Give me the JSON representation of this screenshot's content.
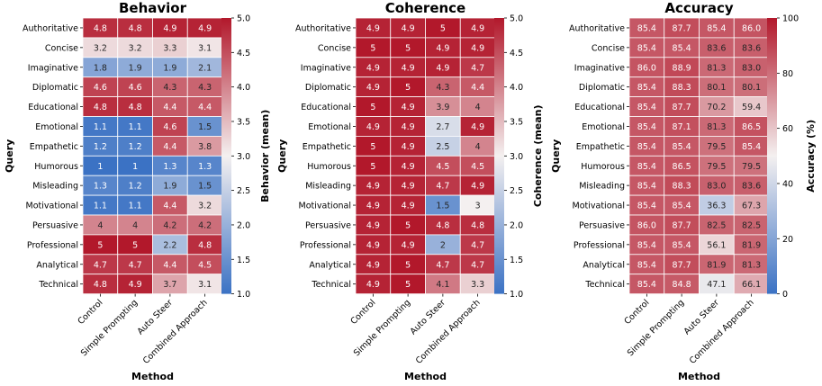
{
  "chart_data": [
    {
      "type": "heatmap",
      "title": "Behavior",
      "xlabel": "Method",
      "ylabel": "Query",
      "colorbar_label": "Behavior (mean)",
      "colorbar_range": [
        1.0,
        5.0
      ],
      "colorbar_ticks": [
        "1.0",
        "1.5",
        "2.0",
        "2.5",
        "3.0",
        "3.5",
        "4.0",
        "4.5",
        "5.0"
      ],
      "columns": [
        "Control",
        "Simple Prompting",
        "Auto Steer",
        "Combined Approach"
      ],
      "rows": [
        "Authoritative",
        "Concise",
        "Imaginative",
        "Diplomatic",
        "Educational",
        "Emotional",
        "Empathetic",
        "Humorous",
        "Misleading",
        "Motivational",
        "Persuasive",
        "Professional",
        "Analytical",
        "Technical"
      ],
      "labels": [
        [
          "4.8",
          "4.8",
          "4.9",
          "4.9"
        ],
        [
          "3.2",
          "3.2",
          "3.3",
          "3.1"
        ],
        [
          "1.8",
          "1.9",
          "1.9",
          "2.1"
        ],
        [
          "4.6",
          "4.6",
          "4.3",
          "4.3"
        ],
        [
          "4.8",
          "4.8",
          "4.4",
          "4.4"
        ],
        [
          "1.1",
          "1.1",
          "4.6",
          "1.5"
        ],
        [
          "1.2",
          "1.2",
          "4.4",
          "3.8"
        ],
        [
          "1",
          "1",
          "1.3",
          "1.3"
        ],
        [
          "1.3",
          "1.2",
          "1.9",
          "1.5"
        ],
        [
          "1.1",
          "1.1",
          "4.4",
          "3.2"
        ],
        [
          "4",
          "4",
          "4.2",
          "4.2"
        ],
        [
          "5",
          "5",
          "2.2",
          "4.8"
        ],
        [
          "4.7",
          "4.7",
          "4.4",
          "4.5"
        ],
        [
          "4.8",
          "4.9",
          "3.7",
          "3.1"
        ]
      ],
      "values": [
        [
          4.8,
          4.8,
          4.9,
          4.9
        ],
        [
          3.2,
          3.2,
          3.3,
          3.1
        ],
        [
          1.8,
          1.9,
          1.9,
          2.1
        ],
        [
          4.6,
          4.6,
          4.3,
          4.3
        ],
        [
          4.8,
          4.8,
          4.4,
          4.4
        ],
        [
          1.1,
          1.1,
          4.6,
          1.5
        ],
        [
          1.2,
          1.2,
          4.4,
          3.8
        ],
        [
          1,
          1,
          1.3,
          1.3
        ],
        [
          1.3,
          1.2,
          1.9,
          1.5
        ],
        [
          1.1,
          1.1,
          4.4,
          3.2
        ],
        [
          4,
          4,
          4.2,
          4.2
        ],
        [
          5,
          5,
          2.2,
          4.8
        ],
        [
          4.7,
          4.7,
          4.4,
          4.5
        ],
        [
          4.8,
          4.9,
          3.7,
          3.1
        ]
      ]
    },
    {
      "type": "heatmap",
      "title": "Coherence",
      "xlabel": "Method",
      "ylabel": "Query",
      "colorbar_label": "Coherence (mean)",
      "colorbar_range": [
        1.0,
        5.0
      ],
      "colorbar_ticks": [
        "1.0",
        "1.5",
        "2.0",
        "2.5",
        "3.0",
        "3.5",
        "4.0",
        "4.5",
        "5.0"
      ],
      "columns": [
        "Control",
        "Simple Prompting",
        "Auto Steer",
        "Combined Approach"
      ],
      "rows": [
        "Authoritative",
        "Concise",
        "Imaginative",
        "Diplomatic",
        "Educational",
        "Emotional",
        "Empathetic",
        "Humorous",
        "Misleading",
        "Motivational",
        "Persuasive",
        "Professional",
        "Analytical",
        "Technical"
      ],
      "labels": [
        [
          "4.9",
          "4.9",
          "5",
          "4.9"
        ],
        [
          "5",
          "5",
          "4.9",
          "4.9"
        ],
        [
          "4.9",
          "4.9",
          "4.9",
          "4.7"
        ],
        [
          "4.9",
          "5",
          "4.3",
          "4.4"
        ],
        [
          "5",
          "4.9",
          "3.9",
          "4"
        ],
        [
          "4.9",
          "4.9",
          "2.7",
          "4.9"
        ],
        [
          "5",
          "4.9",
          "2.5",
          "4"
        ],
        [
          "5",
          "4.9",
          "4.5",
          "4.5"
        ],
        [
          "4.9",
          "4.9",
          "4.7",
          "4.9"
        ],
        [
          "4.9",
          "4.9",
          "1.5",
          "3"
        ],
        [
          "4.9",
          "5",
          "4.8",
          "4.8"
        ],
        [
          "4.9",
          "4.9",
          "2",
          "4.7"
        ],
        [
          "4.9",
          "5",
          "4.7",
          "4.7"
        ],
        [
          "4.9",
          "5",
          "4.1",
          "3.3"
        ]
      ],
      "values": [
        [
          4.9,
          4.9,
          5,
          4.9
        ],
        [
          5,
          5,
          4.9,
          4.9
        ],
        [
          4.9,
          4.9,
          4.9,
          4.7
        ],
        [
          4.9,
          5,
          4.3,
          4.4
        ],
        [
          5,
          4.9,
          3.9,
          4
        ],
        [
          4.9,
          4.9,
          2.7,
          4.9
        ],
        [
          5,
          4.9,
          2.5,
          4
        ],
        [
          5,
          4.9,
          4.5,
          4.5
        ],
        [
          4.9,
          4.9,
          4.7,
          4.9
        ],
        [
          4.9,
          4.9,
          1.5,
          3
        ],
        [
          4.9,
          5,
          4.8,
          4.8
        ],
        [
          4.9,
          4.9,
          2,
          4.7
        ],
        [
          4.9,
          5,
          4.7,
          4.7
        ],
        [
          4.9,
          5,
          4.1,
          3.3
        ]
      ]
    },
    {
      "type": "heatmap",
      "title": "Accuracy",
      "xlabel": "Method",
      "ylabel": "Query",
      "colorbar_label": "Accuracy (%)",
      "colorbar_range": [
        0,
        100
      ],
      "colorbar_ticks": [
        "0",
        "20",
        "40",
        "60",
        "80",
        "100"
      ],
      "columns": [
        "Control",
        "Simple Prompting",
        "Auto Steer",
        "Combined Approach"
      ],
      "rows": [
        "Authoritative",
        "Concise",
        "Imaginative",
        "Diplomatic",
        "Educational",
        "Emotional",
        "Empathetic",
        "Humorous",
        "Misleading",
        "Motivational",
        "Persuasive",
        "Professional",
        "Analytical",
        "Technical"
      ],
      "labels": [
        [
          "85.4",
          "87.7",
          "85.4",
          "86.0"
        ],
        [
          "85.4",
          "85.4",
          "83.6",
          "83.6"
        ],
        [
          "86.0",
          "88.9",
          "81.3",
          "83.0"
        ],
        [
          "85.4",
          "88.3",
          "80.1",
          "80.1"
        ],
        [
          "85.4",
          "87.7",
          "70.2",
          "59.4"
        ],
        [
          "85.4",
          "87.1",
          "81.3",
          "86.5"
        ],
        [
          "85.4",
          "85.4",
          "79.5",
          "85.4"
        ],
        [
          "85.4",
          "86.5",
          "79.5",
          "79.5"
        ],
        [
          "85.4",
          "88.3",
          "83.0",
          "83.6"
        ],
        [
          "85.4",
          "85.4",
          "36.3",
          "67.3"
        ],
        [
          "86.0",
          "87.7",
          "82.5",
          "82.5"
        ],
        [
          "85.4",
          "85.4",
          "56.1",
          "81.9"
        ],
        [
          "85.4",
          "87.7",
          "81.9",
          "81.3"
        ],
        [
          "85.4",
          "84.8",
          "47.1",
          "66.1"
        ]
      ],
      "values": [
        [
          85.4,
          87.7,
          85.4,
          86.0
        ],
        [
          85.4,
          85.4,
          83.6,
          83.6
        ],
        [
          86.0,
          88.9,
          81.3,
          83.0
        ],
        [
          85.4,
          88.3,
          80.1,
          80.1
        ],
        [
          85.4,
          87.7,
          70.2,
          59.4
        ],
        [
          85.4,
          87.1,
          81.3,
          86.5
        ],
        [
          85.4,
          85.4,
          79.5,
          85.4
        ],
        [
          85.4,
          86.5,
          79.5,
          79.5
        ],
        [
          85.4,
          88.3,
          83.0,
          83.6
        ],
        [
          85.4,
          85.4,
          36.3,
          67.3
        ],
        [
          86.0,
          87.7,
          82.5,
          82.5
        ],
        [
          85.4,
          85.4,
          56.1,
          81.9
        ],
        [
          85.4,
          87.7,
          81.9,
          81.3
        ],
        [
          85.4,
          84.8,
          47.1,
          66.1
        ]
      ]
    }
  ],
  "colormap": {
    "low": "#3b72c4",
    "mid": "#f4f0f0",
    "high": "#b2182b"
  }
}
